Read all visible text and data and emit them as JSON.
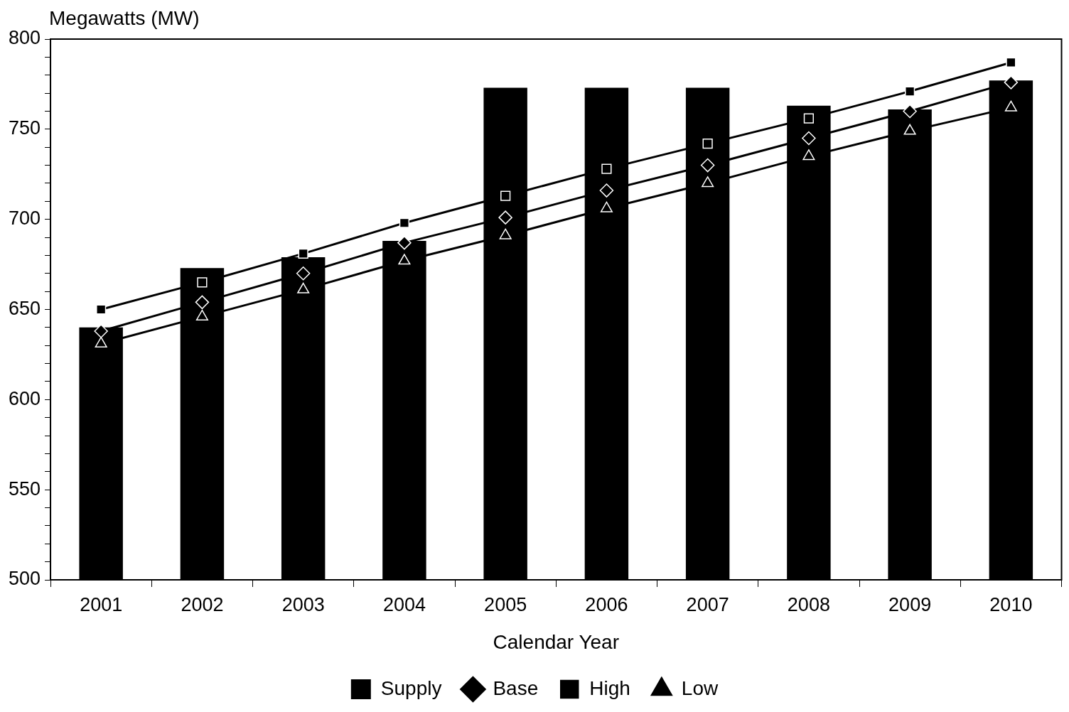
{
  "chart_data": {
    "type": "bar",
    "ylabel": "Megawatts (MW)",
    "xlabel": "Calendar Year",
    "categories": [
      "2001",
      "2002",
      "2003",
      "2004",
      "2005",
      "2006",
      "2007",
      "2008",
      "2009",
      "2010"
    ],
    "series": [
      {
        "name": "Supply",
        "color": "#000000",
        "values": [
          640,
          673,
          679,
          688,
          773,
          773,
          773,
          763,
          761,
          777
        ]
      },
      {
        "name": "Base",
        "type": "line",
        "color": "#000000",
        "marker": "diamond",
        "values": [
          638,
          654,
          670,
          687,
          701,
          716,
          730,
          745,
          760,
          776
        ]
      },
      {
        "name": "High",
        "type": "line",
        "color": "#000000",
        "marker": "square",
        "values": [
          650,
          665,
          681,
          698,
          713,
          728,
          742,
          756,
          771,
          787
        ]
      },
      {
        "name": "Low",
        "type": "line",
        "color": "#000000",
        "marker": "triangle",
        "values": [
          631,
          646,
          661,
          677,
          691,
          706,
          720,
          735,
          749,
          762
        ]
      }
    ],
    "ylim": [
      500,
      800
    ],
    "yticks": [
      500,
      {
        "value": 510,
        "label": null
      },
      {
        "value": 520,
        "label": null
      },
      {
        "value": 530,
        "label": null
      },
      {
        "value": 540,
        "label": null
      },
      550,
      {
        "value": 560,
        "label": null
      },
      {
        "value": 570,
        "label": null
      },
      {
        "value": 580,
        "label": null
      },
      {
        "value": 590,
        "label": null
      },
      600,
      {
        "value": 610,
        "label": null
      },
      {
        "value": 620,
        "label": null
      },
      {
        "value": 630,
        "label": null
      },
      {
        "value": 640,
        "label": null
      },
      650,
      {
        "value": 660,
        "label": null
      },
      {
        "value": 670,
        "label": null
      },
      {
        "value": 680,
        "label": null
      },
      {
        "value": 690,
        "label": null
      },
      700,
      {
        "value": 710,
        "label": null
      },
      {
        "value": 720,
        "label": null
      },
      {
        "value": 730,
        "label": null
      },
      {
        "value": 740,
        "label": null
      },
      750,
      {
        "value": 760,
        "label": null
      },
      {
        "value": 770,
        "label": null
      },
      {
        "value": 780,
        "label": null
      },
      {
        "value": 790,
        "label": null
      },
      800
    ],
    "grid": false,
    "legend": "bottom"
  }
}
